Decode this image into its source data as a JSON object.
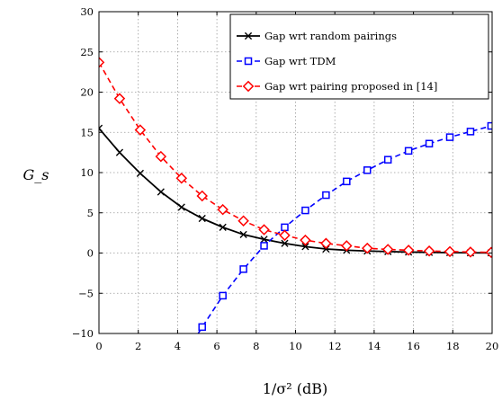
{
  "chart_data": {
    "type": "line",
    "title": "",
    "xlabel": "1/σ² (dB)",
    "ylabel": "G_s",
    "xlim": [
      0,
      20
    ],
    "ylim": [
      -10,
      30
    ],
    "xticks": [
      0,
      2,
      4,
      6,
      8,
      10,
      12,
      14,
      16,
      18,
      20
    ],
    "yticks": [
      -10,
      -5,
      0,
      5,
      10,
      15,
      20,
      25,
      30
    ],
    "xtick_labels": [
      "0",
      "2",
      "4",
      "6",
      "8",
      "10",
      "12",
      "14",
      "16",
      "18",
      "20"
    ],
    "ytick_labels": [
      "−10",
      "−5",
      "0",
      "5",
      "10",
      "15",
      "20",
      "25",
      "30"
    ],
    "grid": true,
    "legend_position": "top-right",
    "series": [
      {
        "name": "Gap wrt random pairings",
        "color": "#000000",
        "line_style": "solid",
        "marker": "x",
        "x": [
          0,
          1.05,
          2.1,
          3.15,
          4.2,
          5.25,
          6.3,
          7.35,
          8.4,
          9.45,
          10.5,
          11.55,
          12.6,
          13.65,
          14.7,
          15.75,
          16.8,
          17.85,
          18.9,
          19.95
        ],
        "y": [
          15.5,
          12.5,
          9.9,
          7.6,
          5.7,
          4.3,
          3.2,
          2.3,
          1.7,
          1.2,
          0.8,
          0.5,
          0.35,
          0.25,
          0.18,
          0.12,
          0.08,
          0.05,
          0.03,
          0.02
        ]
      },
      {
        "name": "Gap wrt TDM",
        "color": "#0000ff",
        "line_style": "dashed",
        "marker": "square",
        "x": [
          5.25,
          6.3,
          7.35,
          8.4,
          9.45,
          10.5,
          11.55,
          12.6,
          13.65,
          14.7,
          15.75,
          16.8,
          17.85,
          18.9,
          19.95
        ],
        "y": [
          -9.2,
          -5.3,
          -2.0,
          0.9,
          3.2,
          5.3,
          7.2,
          8.9,
          10.3,
          11.6,
          12.7,
          13.6,
          14.4,
          15.1,
          15.8
        ],
        "line_start": {
          "x": 4.8,
          "y": -11
        }
      },
      {
        "name": "Gap wrt pairing proposed in [14]",
        "color": "#ff0000",
        "line_style": "dashed",
        "marker": "diamond",
        "x": [
          0,
          1.05,
          2.1,
          3.15,
          4.2,
          5.25,
          6.3,
          7.35,
          8.4,
          9.45,
          10.5,
          11.55,
          12.6,
          13.65,
          14.7,
          15.75,
          16.8,
          17.85,
          18.9,
          19.95
        ],
        "y": [
          23.7,
          19.2,
          15.3,
          12.0,
          9.3,
          7.1,
          5.4,
          4.0,
          2.9,
          2.2,
          1.6,
          1.2,
          0.9,
          0.6,
          0.45,
          0.35,
          0.25,
          0.18,
          0.12,
          0.08
        ]
      }
    ]
  }
}
